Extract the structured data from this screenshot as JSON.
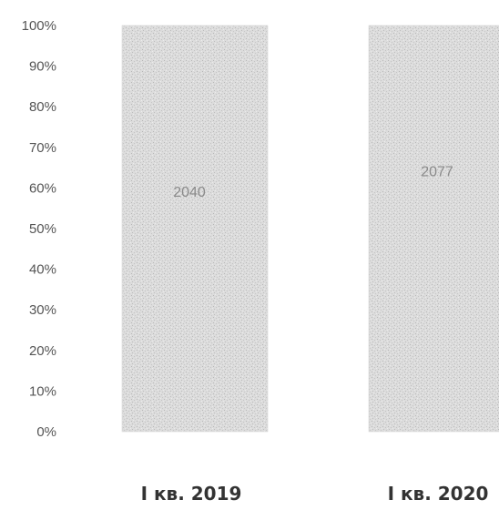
{
  "chart_data": {
    "type": "bar",
    "stacked_percent": true,
    "categories": [
      "I кв. 2019",
      "I кв. 2020"
    ],
    "series": [
      {
        "values": [
          100,
          100
        ],
        "data_labels": [
          "2040",
          "2077"
        ]
      }
    ],
    "value_labels": [
      "2040",
      "2077"
    ],
    "ylim": [
      0,
      100
    ],
    "yticks": [
      "0%",
      "10%",
      "20%",
      "30%",
      "40%",
      "50%",
      "60%",
      "70%",
      "80%",
      "90%",
      "100%"
    ],
    "label_position_fraction": [
      0.59,
      0.64
    ],
    "bar_color": "#d9d9d9",
    "grid": false,
    "legend": "none"
  }
}
